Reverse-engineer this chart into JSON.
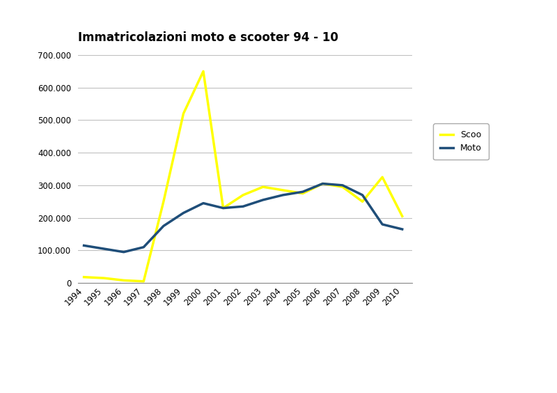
{
  "title": "Immatricolazioni moto e scooter 94 - 10",
  "years": [
    1994,
    1995,
    1996,
    1997,
    1998,
    1999,
    2000,
    2001,
    2002,
    2003,
    2004,
    2005,
    2006,
    2007,
    2008,
    2009,
    2010
  ],
  "scooter": [
    18000,
    15000,
    8000,
    5000,
    250000,
    520000,
    650000,
    230000,
    270000,
    295000,
    285000,
    275000,
    305000,
    295000,
    250000,
    325000,
    205000
  ],
  "moto": [
    115000,
    105000,
    95000,
    110000,
    175000,
    215000,
    245000,
    230000,
    235000,
    255000,
    270000,
    280000,
    305000,
    300000,
    270000,
    180000,
    165000
  ],
  "scooter_color": "#ffff00",
  "moto_color": "#1f4e79",
  "background_color": "#ffffff",
  "legend_scooter": "Scoo",
  "legend_moto": "Moto",
  "ylim_min": 0,
  "ylim_max": 700000,
  "ytick_values": [
    0,
    100000,
    200000,
    300000,
    400000,
    500000,
    600000,
    700000
  ],
  "ytick_labels": [
    "0",
    "100.000",
    "200.000",
    "300.000",
    "400.000",
    "500.000",
    "600.000",
    "700.000"
  ],
  "grid_color": "#c0c0c0",
  "line_width": 2.5,
  "title_fontsize": 12,
  "tick_fontsize": 8.5
}
